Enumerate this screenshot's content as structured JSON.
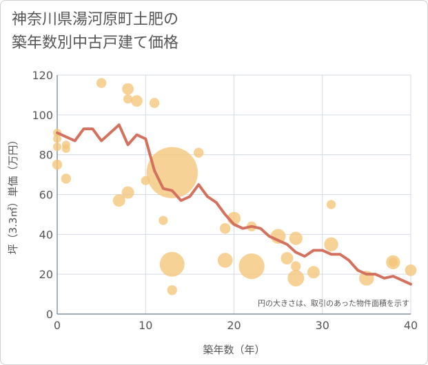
{
  "title_lines": [
    "神奈川県湯河原町土肥の",
    "築年数別中古戸建て価格"
  ],
  "chart_data": {
    "type": "scatter+line",
    "xlabel": "築年数（年）",
    "ylabel": "坪（3.3㎡）単価（万円）",
    "xlim": [
      0,
      40
    ],
    "ylim": [
      0,
      120
    ],
    "x_ticks": [
      0,
      10,
      20,
      30,
      40
    ],
    "y_ticks": [
      0,
      20,
      40,
      60,
      80,
      100,
      120
    ],
    "grid": true,
    "annotation": "円の大きさは、取引のあった物件面積を示す",
    "colors": {
      "scatter": "#f5c57a",
      "line": "#d4715e",
      "grid": "#d3dbe3",
      "axis": "#6b7c8f"
    },
    "scatter": [
      {
        "x": 0,
        "y": 91,
        "s": 1
      },
      {
        "x": 0,
        "y": 88,
        "s": 1
      },
      {
        "x": 0,
        "y": 84,
        "s": 1
      },
      {
        "x": 0,
        "y": 75,
        "s": 1.2
      },
      {
        "x": 1,
        "y": 85,
        "s": 1
      },
      {
        "x": 1,
        "y": 83,
        "s": 1
      },
      {
        "x": 1,
        "y": 68,
        "s": 1.2
      },
      {
        "x": 5,
        "y": 116,
        "s": 1.2
      },
      {
        "x": 7,
        "y": 57,
        "s": 1.5
      },
      {
        "x": 8,
        "y": 113,
        "s": 1.4
      },
      {
        "x": 8,
        "y": 108,
        "s": 1.1
      },
      {
        "x": 8,
        "y": 61,
        "s": 1.5
      },
      {
        "x": 9,
        "y": 107,
        "s": 1.4
      },
      {
        "x": 10,
        "y": 67,
        "s": 1.1
      },
      {
        "x": 11,
        "y": 106,
        "s": 1.2
      },
      {
        "x": 12,
        "y": 47,
        "s": 1.1
      },
      {
        "x": 13,
        "y": 71,
        "s": 6.2
      },
      {
        "x": 13,
        "y": 25,
        "s": 3
      },
      {
        "x": 13,
        "y": 12,
        "s": 1.2
      },
      {
        "x": 16,
        "y": 81,
        "s": 1.2
      },
      {
        "x": 19,
        "y": 43,
        "s": 1.3
      },
      {
        "x": 19,
        "y": 27,
        "s": 1.8
      },
      {
        "x": 20,
        "y": 48,
        "s": 1.6
      },
      {
        "x": 22,
        "y": 44,
        "s": 1.2
      },
      {
        "x": 22,
        "y": 24,
        "s": 3.1
      },
      {
        "x": 25,
        "y": 39,
        "s": 1.8
      },
      {
        "x": 26,
        "y": 28,
        "s": 1.5
      },
      {
        "x": 27,
        "y": 38,
        "s": 1.6
      },
      {
        "x": 27,
        "y": 24,
        "s": 1.2
      },
      {
        "x": 27,
        "y": 18,
        "s": 2
      },
      {
        "x": 29,
        "y": 21,
        "s": 1.5
      },
      {
        "x": 31,
        "y": 55,
        "s": 1.1
      },
      {
        "x": 31,
        "y": 35,
        "s": 1.7
      },
      {
        "x": 35,
        "y": 18,
        "s": 1.8
      },
      {
        "x": 38,
        "y": 26,
        "s": 1.7
      },
      {
        "x": 38,
        "y": 26,
        "s": 1.1
      },
      {
        "x": 40,
        "y": 22,
        "s": 1.4
      }
    ],
    "line": {
      "x": [
        0,
        1,
        2,
        3,
        4,
        5,
        6,
        7,
        8,
        9,
        10,
        11,
        12,
        13,
        14,
        15,
        16,
        17,
        18,
        19,
        20,
        21,
        22,
        23,
        24,
        25,
        26,
        27,
        28,
        29,
        30,
        31,
        32,
        33,
        34,
        35,
        36,
        37,
        38,
        39,
        40
      ],
      "y": [
        91,
        89,
        87,
        93,
        93,
        87,
        91,
        95,
        85,
        90,
        88,
        72,
        63,
        62,
        57,
        59,
        65,
        59,
        56,
        50,
        45,
        43,
        44,
        43,
        39,
        37,
        35,
        31,
        29,
        32,
        32,
        30,
        30,
        27,
        22,
        20,
        20,
        18,
        19,
        17,
        15
      ]
    }
  }
}
